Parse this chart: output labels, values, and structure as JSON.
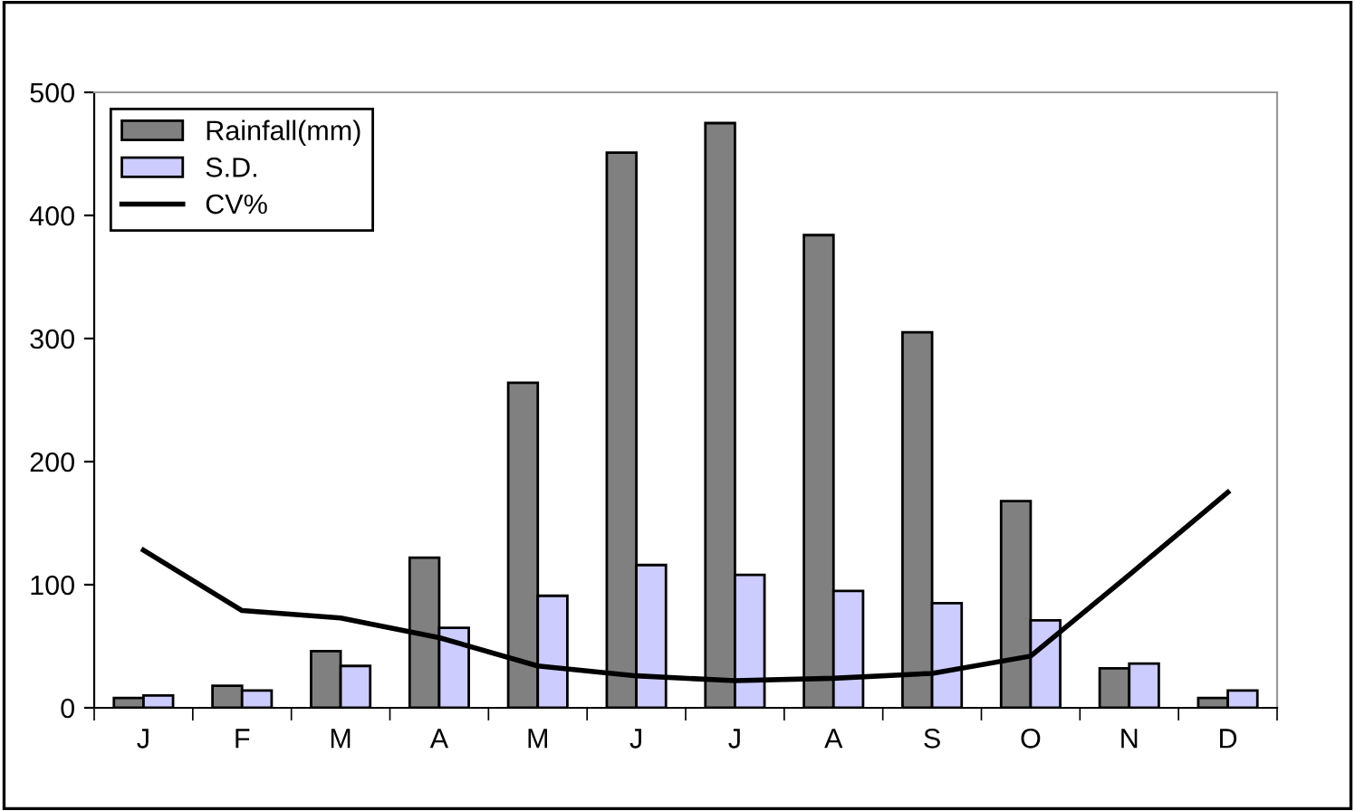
{
  "chart_data": {
    "type": "bar",
    "categories": [
      "J",
      "F",
      "M",
      "A",
      "M",
      "J",
      "J",
      "A",
      "S",
      "O",
      "N",
      "D"
    ],
    "series": [
      {
        "name": "Rainfall(mm)",
        "color": "#808080",
        "values": [
          8,
          18,
          46,
          122,
          264,
          451,
          475,
          384,
          305,
          168,
          32,
          8
        ]
      },
      {
        "name": "S.D.",
        "color": "#ccccff",
        "values": [
          10,
          14,
          34,
          65,
          91,
          116,
          108,
          95,
          85,
          71,
          36,
          14
        ]
      },
      {
        "name": "CV%",
        "type": "line",
        "color": "#000000",
        "values": [
          128,
          79,
          73,
          57,
          34,
          26,
          22,
          24,
          28,
          42,
          108,
          175
        ]
      }
    ],
    "ylim": [
      0,
      500
    ],
    "yticks": [
      0,
      100,
      200,
      300,
      400,
      500
    ],
    "grid": false,
    "legend": "top left"
  }
}
